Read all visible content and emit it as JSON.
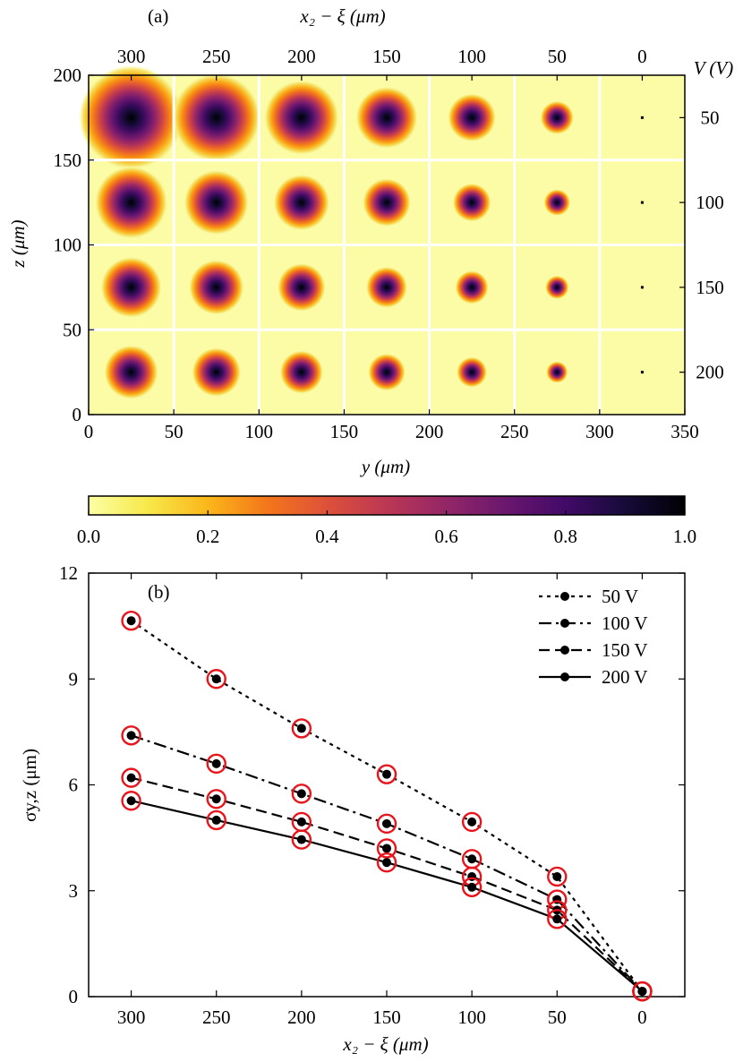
{
  "chart_data": [
    {
      "type": "heatmap",
      "panel_label": "(a)",
      "xlabel": "y (μm)",
      "ylabel": "z (μm)",
      "top_xlabel": "x₂ − ξ (μm)",
      "right_label": "V (V)",
      "xlim": [
        0,
        350
      ],
      "ylim": [
        0,
        200
      ],
      "x_ticks": [
        0,
        50,
        100,
        150,
        200,
        250,
        300,
        350
      ],
      "y_ticks": [
        0,
        50,
        100,
        150,
        200
      ],
      "top_ticks": [
        "300",
        "250",
        "200",
        "150",
        "100",
        "50",
        "0"
      ],
      "right_ticks": [
        "50",
        "100",
        "150",
        "200"
      ],
      "columns_x2_minus_xi": [
        300,
        250,
        200,
        150,
        100,
        50,
        0
      ],
      "rows_voltage": [
        50,
        100,
        150,
        200
      ],
      "spot_sigma_um": [
        [
          10.6,
          9.0,
          7.6,
          6.3,
          4.9,
          3.4,
          0.15
        ],
        [
          7.4,
          6.6,
          5.7,
          4.9,
          3.9,
          2.7,
          0.15
        ],
        [
          6.2,
          5.6,
          4.9,
          4.2,
          3.4,
          2.4,
          0.15
        ],
        [
          5.5,
          5.0,
          4.4,
          3.8,
          3.1,
          2.2,
          0.15
        ]
      ],
      "colorbar": {
        "ticks": [
          "0.0",
          "0.2",
          "0.4",
          "0.6",
          "0.8",
          "1.0"
        ],
        "range": [
          0,
          1
        ],
        "colormap": "inferno_r"
      },
      "grid_color": "#ffffff",
      "background_color": "#fcfca6"
    },
    {
      "type": "line",
      "panel_label": "(b)",
      "xlabel": "x₂ − ξ (μm)",
      "ylabel": "σy,z (μm)",
      "x": [
        300,
        250,
        200,
        150,
        100,
        50,
        0
      ],
      "xlim": [
        325,
        -25
      ],
      "ylim": [
        0,
        12
      ],
      "x_ticks": [
        300,
        250,
        200,
        150,
        100,
        50,
        0
      ],
      "y_ticks": [
        0,
        3,
        6,
        9,
        12
      ],
      "legend_position": "top-right",
      "marker_ring_color": "#e8141c",
      "series": [
        {
          "name": "50 V",
          "dash": "dotted",
          "values": [
            10.65,
            9.0,
            7.6,
            6.3,
            4.95,
            3.4,
            0.15
          ]
        },
        {
          "name": "100 V",
          "dash": "dashdot",
          "values": [
            7.4,
            6.6,
            5.75,
            4.9,
            3.9,
            2.75,
            0.15
          ]
        },
        {
          "name": "150 V",
          "dash": "dashed",
          "values": [
            6.2,
            5.6,
            4.95,
            4.2,
            3.4,
            2.45,
            0.15
          ]
        },
        {
          "name": "200 V",
          "dash": "solid",
          "values": [
            5.55,
            5.0,
            4.45,
            3.8,
            3.1,
            2.2,
            0.15
          ]
        }
      ]
    }
  ]
}
